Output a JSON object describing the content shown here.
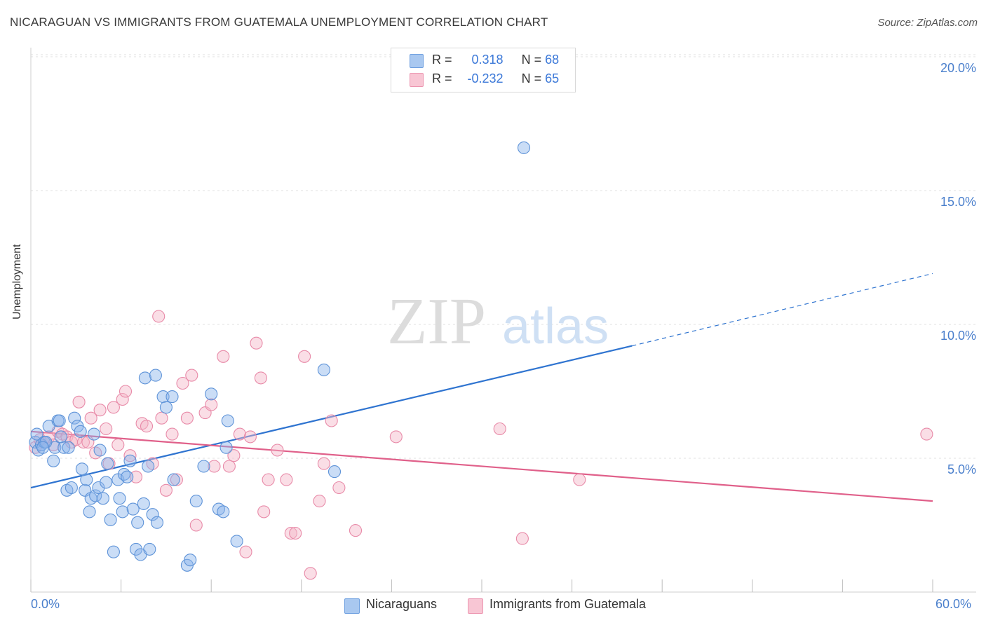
{
  "title": "NICARAGUAN VS IMMIGRANTS FROM GUATEMALA UNEMPLOYMENT CORRELATION CHART",
  "source": "Source: ZipAtlas.com",
  "watermark": {
    "zip": "ZIP",
    "atlas": "atlas"
  },
  "stats": [
    {
      "r_label": "R =",
      "r_value": "0.318",
      "n_label": "N =",
      "n_value": "68",
      "color": "#a9c8f0",
      "border": "#6fa0e0"
    },
    {
      "r_label": "R =",
      "r_value": "-0.232",
      "n_label": "N =",
      "n_value": "65",
      "color": "#f8c6d4",
      "border": "#ec95b0"
    }
  ],
  "chart_data": {
    "type": "scatter",
    "title": "NICARAGUAN VS IMMIGRANTS FROM GUATEMALA UNEMPLOYMENT CORRELATION CHART",
    "xlabel": "",
    "ylabel": "Unemployment",
    "xlim": [
      0,
      60
    ],
    "ylim": [
      0,
      20.5
    ],
    "x_tick_labels": [
      "0.0%",
      "60.0%"
    ],
    "y_ticks": [
      5,
      10,
      15,
      20
    ],
    "y_tick_labels": [
      "5.0%",
      "10.0%",
      "15.0%",
      "20.0%"
    ],
    "legend": [
      "Nicaraguans",
      "Immigrants from Guatemala"
    ],
    "series": [
      {
        "name": "Nicaraguans",
        "color": "#8ab4ea",
        "stroke": "#5e93d8",
        "trend_color": "#2f74d0",
        "trend": {
          "x0": 0,
          "y0": 3.9,
          "x1": 40,
          "y1": 9.2,
          "dash_to_x": 60,
          "dash_to_y": 11.9
        },
        "points": [
          [
            0.3,
            5.6
          ],
          [
            0.5,
            5.3
          ],
          [
            0.4,
            5.9
          ],
          [
            0.7,
            5.5
          ],
          [
            0.9,
            5.6
          ],
          [
            1.2,
            6.2
          ],
          [
            1.5,
            4.9
          ],
          [
            1.6,
            5.4
          ],
          [
            1.8,
            6.4
          ],
          [
            1.9,
            6.4
          ],
          [
            2.2,
            5.4
          ],
          [
            2.4,
            3.8
          ],
          [
            2.5,
            5.4
          ],
          [
            2.7,
            3.9
          ],
          [
            2.9,
            6.5
          ],
          [
            3.1,
            6.2
          ],
          [
            3.3,
            6.0
          ],
          [
            3.4,
            4.6
          ],
          [
            3.6,
            3.8
          ],
          [
            3.7,
            4.2
          ],
          [
            3.9,
            3.0
          ],
          [
            4.0,
            3.5
          ],
          [
            4.2,
            5.9
          ],
          [
            4.3,
            3.6
          ],
          [
            4.5,
            3.9
          ],
          [
            4.6,
            5.3
          ],
          [
            4.8,
            3.5
          ],
          [
            5.0,
            4.1
          ],
          [
            5.1,
            4.8
          ],
          [
            5.3,
            2.7
          ],
          [
            5.5,
            1.5
          ],
          [
            5.8,
            4.2
          ],
          [
            5.9,
            3.5
          ],
          [
            6.1,
            3.0
          ],
          [
            6.2,
            4.4
          ],
          [
            6.4,
            4.3
          ],
          [
            6.6,
            4.9
          ],
          [
            6.8,
            3.1
          ],
          [
            7.0,
            1.6
          ],
          [
            7.1,
            2.6
          ],
          [
            7.3,
            1.4
          ],
          [
            7.5,
            3.3
          ],
          [
            7.6,
            8.0
          ],
          [
            7.8,
            4.7
          ],
          [
            7.9,
            1.6
          ],
          [
            8.1,
            2.9
          ],
          [
            8.3,
            8.1
          ],
          [
            8.4,
            2.6
          ],
          [
            8.8,
            7.3
          ],
          [
            9.0,
            6.9
          ],
          [
            9.4,
            7.3
          ],
          [
            9.5,
            4.2
          ],
          [
            10.4,
            1.0
          ],
          [
            10.6,
            1.2
          ],
          [
            11.0,
            3.4
          ],
          [
            11.5,
            4.7
          ],
          [
            12.0,
            7.4
          ],
          [
            12.5,
            3.1
          ],
          [
            12.8,
            3.0
          ],
          [
            13.0,
            5.4
          ],
          [
            13.1,
            6.4
          ],
          [
            13.7,
            1.9
          ],
          [
            19.5,
            8.3
          ],
          [
            20.2,
            4.5
          ],
          [
            32.8,
            16.6
          ],
          [
            1.0,
            5.6
          ],
          [
            2.0,
            5.8
          ],
          [
            0.8,
            5.4
          ]
        ]
      },
      {
        "name": "Immigrants from Guatemala",
        "color": "#f4b6c8",
        "stroke": "#e88aa8",
        "trend_color": "#e0608a",
        "trend": {
          "x0": 0,
          "y0": 6.0,
          "x1": 60,
          "y1": 3.4
        },
        "points": [
          [
            0.3,
            5.4
          ],
          [
            0.6,
            5.7
          ],
          [
            0.9,
            5.6
          ],
          [
            1.2,
            5.8
          ],
          [
            1.5,
            5.5
          ],
          [
            1.8,
            6.0
          ],
          [
            2.1,
            5.9
          ],
          [
            2.4,
            5.8
          ],
          [
            2.7,
            5.6
          ],
          [
            3.0,
            5.7
          ],
          [
            3.2,
            7.1
          ],
          [
            3.5,
            5.6
          ],
          [
            3.8,
            5.6
          ],
          [
            4.0,
            6.5
          ],
          [
            4.3,
            5.2
          ],
          [
            4.6,
            6.8
          ],
          [
            5.0,
            6.1
          ],
          [
            5.2,
            4.8
          ],
          [
            5.5,
            6.9
          ],
          [
            5.8,
            5.5
          ],
          [
            6.1,
            7.2
          ],
          [
            6.3,
            7.5
          ],
          [
            6.6,
            5.1
          ],
          [
            7.0,
            4.3
          ],
          [
            7.4,
            6.3
          ],
          [
            7.7,
            6.2
          ],
          [
            8.1,
            4.8
          ],
          [
            8.5,
            10.3
          ],
          [
            8.7,
            6.5
          ],
          [
            9.0,
            3.8
          ],
          [
            9.4,
            5.9
          ],
          [
            9.7,
            4.2
          ],
          [
            10.1,
            7.8
          ],
          [
            10.4,
            6.5
          ],
          [
            10.7,
            8.1
          ],
          [
            11.0,
            2.5
          ],
          [
            11.6,
            6.7
          ],
          [
            12.0,
            7.0
          ],
          [
            12.2,
            4.7
          ],
          [
            12.8,
            8.8
          ],
          [
            13.2,
            4.7
          ],
          [
            13.5,
            5.1
          ],
          [
            13.9,
            5.9
          ],
          [
            14.3,
            1.5
          ],
          [
            14.6,
            5.8
          ],
          [
            15.0,
            9.3
          ],
          [
            15.3,
            8.0
          ],
          [
            15.5,
            3.0
          ],
          [
            15.8,
            4.2
          ],
          [
            16.4,
            5.3
          ],
          [
            17.0,
            4.2
          ],
          [
            17.3,
            2.2
          ],
          [
            17.6,
            2.2
          ],
          [
            18.2,
            8.8
          ],
          [
            18.6,
            0.7
          ],
          [
            19.2,
            3.4
          ],
          [
            19.5,
            4.8
          ],
          [
            20.0,
            6.4
          ],
          [
            20.5,
            3.9
          ],
          [
            21.6,
            2.3
          ],
          [
            24.3,
            5.8
          ],
          [
            31.2,
            6.1
          ],
          [
            32.7,
            2.0
          ],
          [
            36.5,
            4.2
          ],
          [
            59.6,
            5.9
          ]
        ]
      }
    ]
  }
}
